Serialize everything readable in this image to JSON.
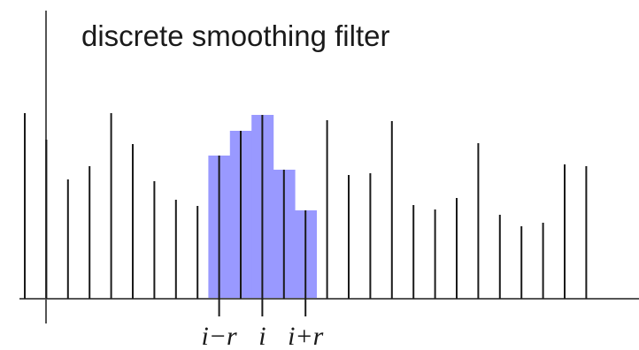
{
  "title": "discrete smoothing filter",
  "chart_data": {
    "type": "bar",
    "samples": [
      210,
      180,
      135,
      150,
      210,
      175,
      133,
      112,
      105,
      162,
      190,
      208,
      146,
      100,
      202,
      140,
      142,
      201,
      106,
      101,
      114,
      176,
      95,
      82,
      86,
      152,
      150
    ],
    "filter_window": {
      "center_index": 11,
      "radius": 2,
      "levels": [
        162,
        190,
        208,
        146,
        100
      ]
    },
    "index_labels": {
      "left": "i−r",
      "center": "i",
      "right": "i+r"
    },
    "colors": {
      "stem": "#1a1a1a",
      "filter": "#9999ff",
      "axis": "#555555"
    }
  }
}
